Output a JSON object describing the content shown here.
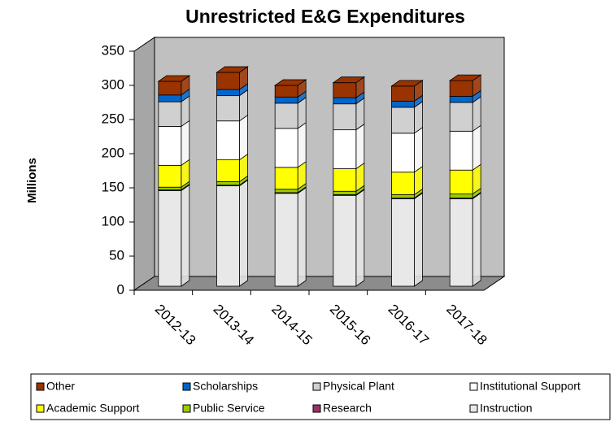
{
  "chart_data": {
    "type": "bar",
    "stacked": true,
    "title": "Unrestricted E&G Expenditures",
    "y_label": "Millions",
    "categories": [
      "2012-13",
      "2013-14",
      "2014-15",
      "2015-16",
      "2016-17",
      "2017-18"
    ],
    "series": [
      {
        "name": "Other",
        "color": "#993300",
        "values": [
          20,
          25,
          17,
          22,
          22,
          23
        ]
      },
      {
        "name": "Scholarships",
        "color": "#0066cc",
        "values": [
          10,
          9,
          9,
          9,
          9,
          9
        ]
      },
      {
        "name": "Physical Plant",
        "color": "#d0d0d0",
        "values": [
          36,
          37,
          37,
          38,
          38,
          42
        ]
      },
      {
        "name": "Institutional Support",
        "color": "#ffffff",
        "values": [
          57,
          57,
          57,
          57,
          57,
          57
        ]
      },
      {
        "name": "Academic Support",
        "color": "#ffff00",
        "values": [
          32,
          32,
          32,
          33,
          33,
          35
        ]
      },
      {
        "name": "Public Service",
        "color": "#99cc00",
        "values": [
          4,
          5,
          5,
          5,
          5,
          6
        ]
      },
      {
        "name": "Research",
        "color": "#993366",
        "values": [
          1,
          1,
          1,
          1,
          1,
          1
        ]
      },
      {
        "name": "Instruction",
        "color": "#e8e8e8",
        "values": [
          140,
          147,
          136,
          133,
          128,
          128
        ]
      }
    ],
    "ylim": [
      0,
      350
    ],
    "yticks": [
      0,
      50,
      100,
      150,
      200,
      250,
      300,
      350
    ],
    "legend": "bottom"
  }
}
